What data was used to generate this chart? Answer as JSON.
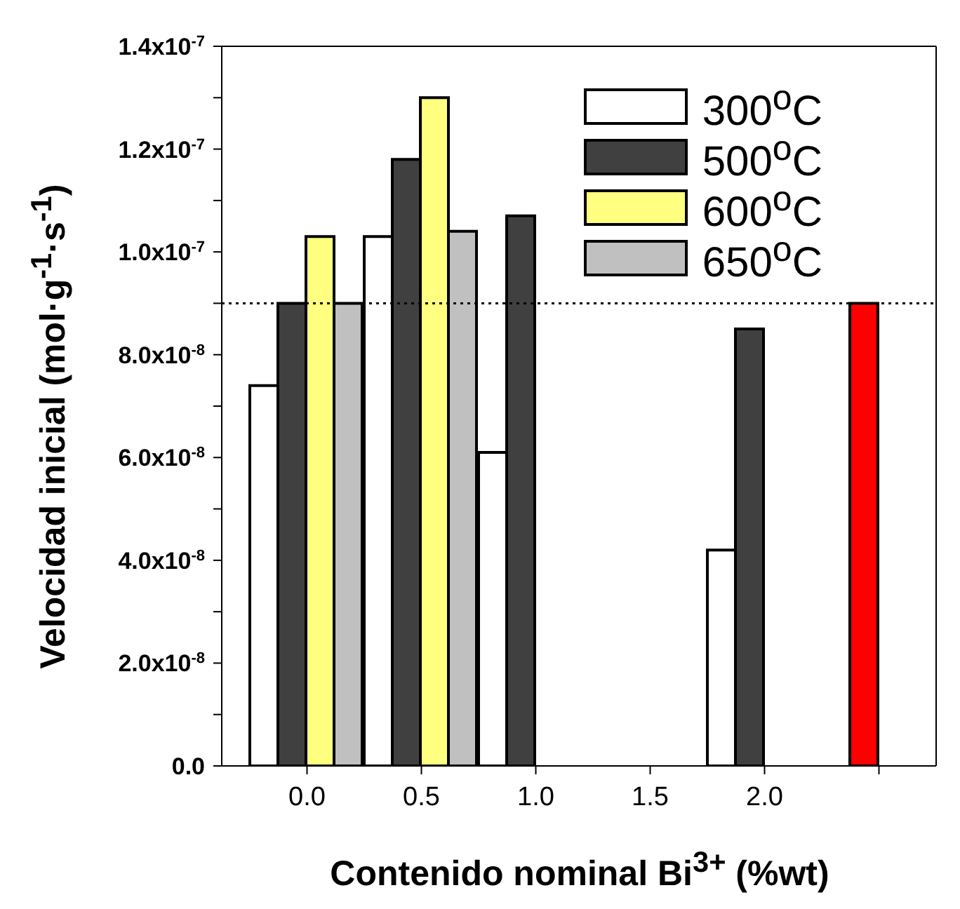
{
  "chart_data": {
    "type": "bar",
    "xlabel": "Contenido nominal Bi$^{3+}$ (%wt)",
    "ylabel": "Velocidad inicial (mol·g$^{-1}$·s$^{-1}$)",
    "categories": [
      "0.0",
      "0.5",
      "1.0",
      "1.5",
      "2.0",
      null
    ],
    "series": [
      {
        "name": "300$^{o}$C",
        "color": "#ffffff",
        "values": [
          7.4e-08,
          1.03e-07,
          6.1e-08,
          null,
          4.2e-08,
          null
        ]
      },
      {
        "name": "500$^{o}$C",
        "color": "#404040",
        "colors": [
          "#404040",
          "#404040",
          "#404040",
          "#404040",
          "#404040",
          "#ff0000"
        ],
        "values": [
          9e-08,
          1.18e-07,
          1.07e-07,
          null,
          8.5e-08,
          9e-08
        ]
      },
      {
        "name": "600$^{o}$C",
        "color": "#ffff80",
        "values": [
          1.03e-07,
          1.3e-07,
          null,
          null,
          null,
          null
        ]
      },
      {
        "name": "650$^{o}$C",
        "color": "#c0c0c0",
        "values": [
          9e-08,
          1.04e-07,
          null,
          null,
          null,
          null
        ]
      }
    ],
    "ylim": [
      0,
      1.4e-07
    ],
    "yticks": [
      {
        "value": 0,
        "label": "0.0"
      },
      {
        "value": 1e-08,
        "label": null
      },
      {
        "value": 2e-08,
        "label": "2.0x10$^{-8}$"
      },
      {
        "value": 3e-08,
        "label": null
      },
      {
        "value": 4e-08,
        "label": "4.0x10$^{-8}$"
      },
      {
        "value": 5e-08,
        "label": null
      },
      {
        "value": 6e-08,
        "label": "6.0x10$^{-8}$"
      },
      {
        "value": 7e-08,
        "label": null
      },
      {
        "value": 8e-08,
        "label": "8.0x10$^{-8}$"
      },
      {
        "value": 9e-08,
        "label": null
      },
      {
        "value": 1e-07,
        "label": "1.0x10$^{-7}$"
      },
      {
        "value": 1.1e-07,
        "label": null
      },
      {
        "value": 1.2e-07,
        "label": "1.2x10$^{-7}$"
      },
      {
        "value": 1.3e-07,
        "label": null
      },
      {
        "value": 1.4e-07,
        "label": "1.4x10$^{-7}$"
      }
    ],
    "ref_lines": [
      {
        "axis": "y",
        "value": 9e-08,
        "color": "#000000",
        "line_style": "dotted"
      }
    ],
    "legend": "top right",
    "grid": false
  }
}
